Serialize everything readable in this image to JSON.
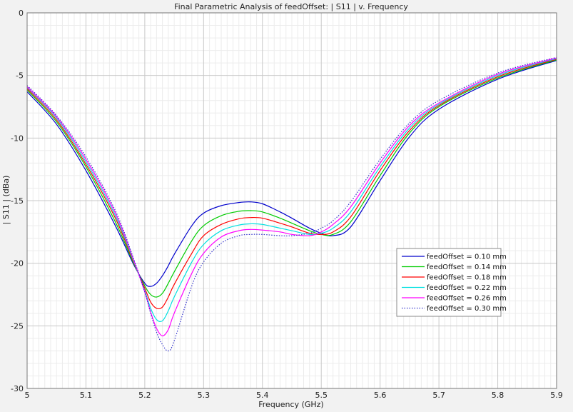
{
  "chart_data": {
    "type": "line",
    "title": "Final Parametric Analysis of feedOffset: | S11 | v. Frequency",
    "xlabel": "Frequency (GHz)",
    "ylabel": "| S11 | (dBa)",
    "xlim": [
      5.0,
      5.9
    ],
    "ylim": [
      -30,
      0
    ],
    "x_ticks": [
      "5",
      "5.1",
      "5.2",
      "5.3",
      "5.4",
      "5.5",
      "5.6",
      "5.7",
      "5.8",
      "5.9"
    ],
    "y_ticks": [
      "0",
      "-5",
      "-10",
      "-15",
      "-20",
      "-25",
      "-30"
    ],
    "grid": true,
    "legend_position": "lower-right",
    "x": [
      5.0,
      5.05,
      5.1,
      5.15,
      5.18,
      5.2,
      5.21,
      5.22,
      5.23,
      5.24,
      5.25,
      5.28,
      5.3,
      5.33,
      5.36,
      5.38,
      5.4,
      5.43,
      5.45,
      5.48,
      5.5,
      5.52,
      5.55,
      5.6,
      5.65,
      5.7,
      5.8,
      5.9
    ],
    "series": [
      {
        "name": "feedOffset = 0.10 mm",
        "color": "#0000cc",
        "dash": "solid",
        "values": [
          -6.3,
          -8.9,
          -12.6,
          -17.0,
          -20.0,
          -21.6,
          -21.85,
          -21.6,
          -21.0,
          -20.2,
          -19.3,
          -17.0,
          -16.0,
          -15.4,
          -15.15,
          -15.1,
          -15.25,
          -15.9,
          -16.4,
          -17.2,
          -17.6,
          -17.8,
          -17.1,
          -13.4,
          -9.9,
          -7.7,
          -5.3,
          -3.8
        ]
      },
      {
        "name": "feedOffset = 0.14 mm",
        "color": "#00cc00",
        "dash": "solid",
        "values": [
          -6.15,
          -8.7,
          -12.3,
          -16.7,
          -19.9,
          -21.8,
          -22.5,
          -22.7,
          -22.4,
          -21.6,
          -20.7,
          -18.2,
          -17.0,
          -16.2,
          -15.85,
          -15.8,
          -15.9,
          -16.4,
          -16.8,
          -17.4,
          -17.7,
          -17.7,
          -16.7,
          -13.0,
          -9.6,
          -7.5,
          -5.2,
          -3.75
        ]
      },
      {
        "name": "feedOffset = 0.18 mm",
        "color": "#ff0000",
        "dash": "solid",
        "values": [
          -6.05,
          -8.55,
          -12.1,
          -16.4,
          -19.8,
          -22.0,
          -23.1,
          -23.6,
          -23.5,
          -22.7,
          -21.7,
          -19.2,
          -17.8,
          -16.9,
          -16.45,
          -16.35,
          -16.4,
          -16.8,
          -17.1,
          -17.6,
          -17.7,
          -17.5,
          -16.3,
          -12.6,
          -9.4,
          -7.4,
          -5.1,
          -3.7
        ]
      },
      {
        "name": "feedOffset = 0.22 mm",
        "color": "#00e0e0",
        "dash": "solid",
        "values": [
          -5.95,
          -8.4,
          -11.9,
          -16.2,
          -19.7,
          -22.2,
          -23.6,
          -24.5,
          -24.6,
          -23.8,
          -22.7,
          -19.9,
          -18.5,
          -17.4,
          -16.95,
          -16.85,
          -16.9,
          -17.2,
          -17.4,
          -17.7,
          -17.6,
          -17.2,
          -15.9,
          -12.3,
          -9.2,
          -7.3,
          -5.0,
          -3.65
        ]
      },
      {
        "name": "feedOffset = 0.26 mm",
        "color": "#ff00ff",
        "dash": "solid",
        "values": [
          -5.9,
          -8.3,
          -11.7,
          -16.0,
          -19.6,
          -22.3,
          -23.9,
          -25.2,
          -25.8,
          -25.3,
          -24.0,
          -20.8,
          -19.2,
          -17.9,
          -17.4,
          -17.3,
          -17.35,
          -17.5,
          -17.7,
          -17.8,
          -17.5,
          -16.9,
          -15.5,
          -12.0,
          -9.0,
          -7.2,
          -4.9,
          -3.6
        ]
      },
      {
        "name": "feedOffset = 0.30 mm",
        "color": "#3333cc",
        "dash": "dotted",
        "values": [
          -5.8,
          -8.2,
          -11.5,
          -15.8,
          -19.5,
          -22.3,
          -24.0,
          -25.5,
          -26.5,
          -27.0,
          -26.2,
          -21.8,
          -19.9,
          -18.4,
          -17.8,
          -17.7,
          -17.7,
          -17.8,
          -17.8,
          -17.6,
          -17.2,
          -16.6,
          -15.1,
          -11.7,
          -8.8,
          -7.0,
          -4.8,
          -3.55
        ]
      }
    ]
  }
}
